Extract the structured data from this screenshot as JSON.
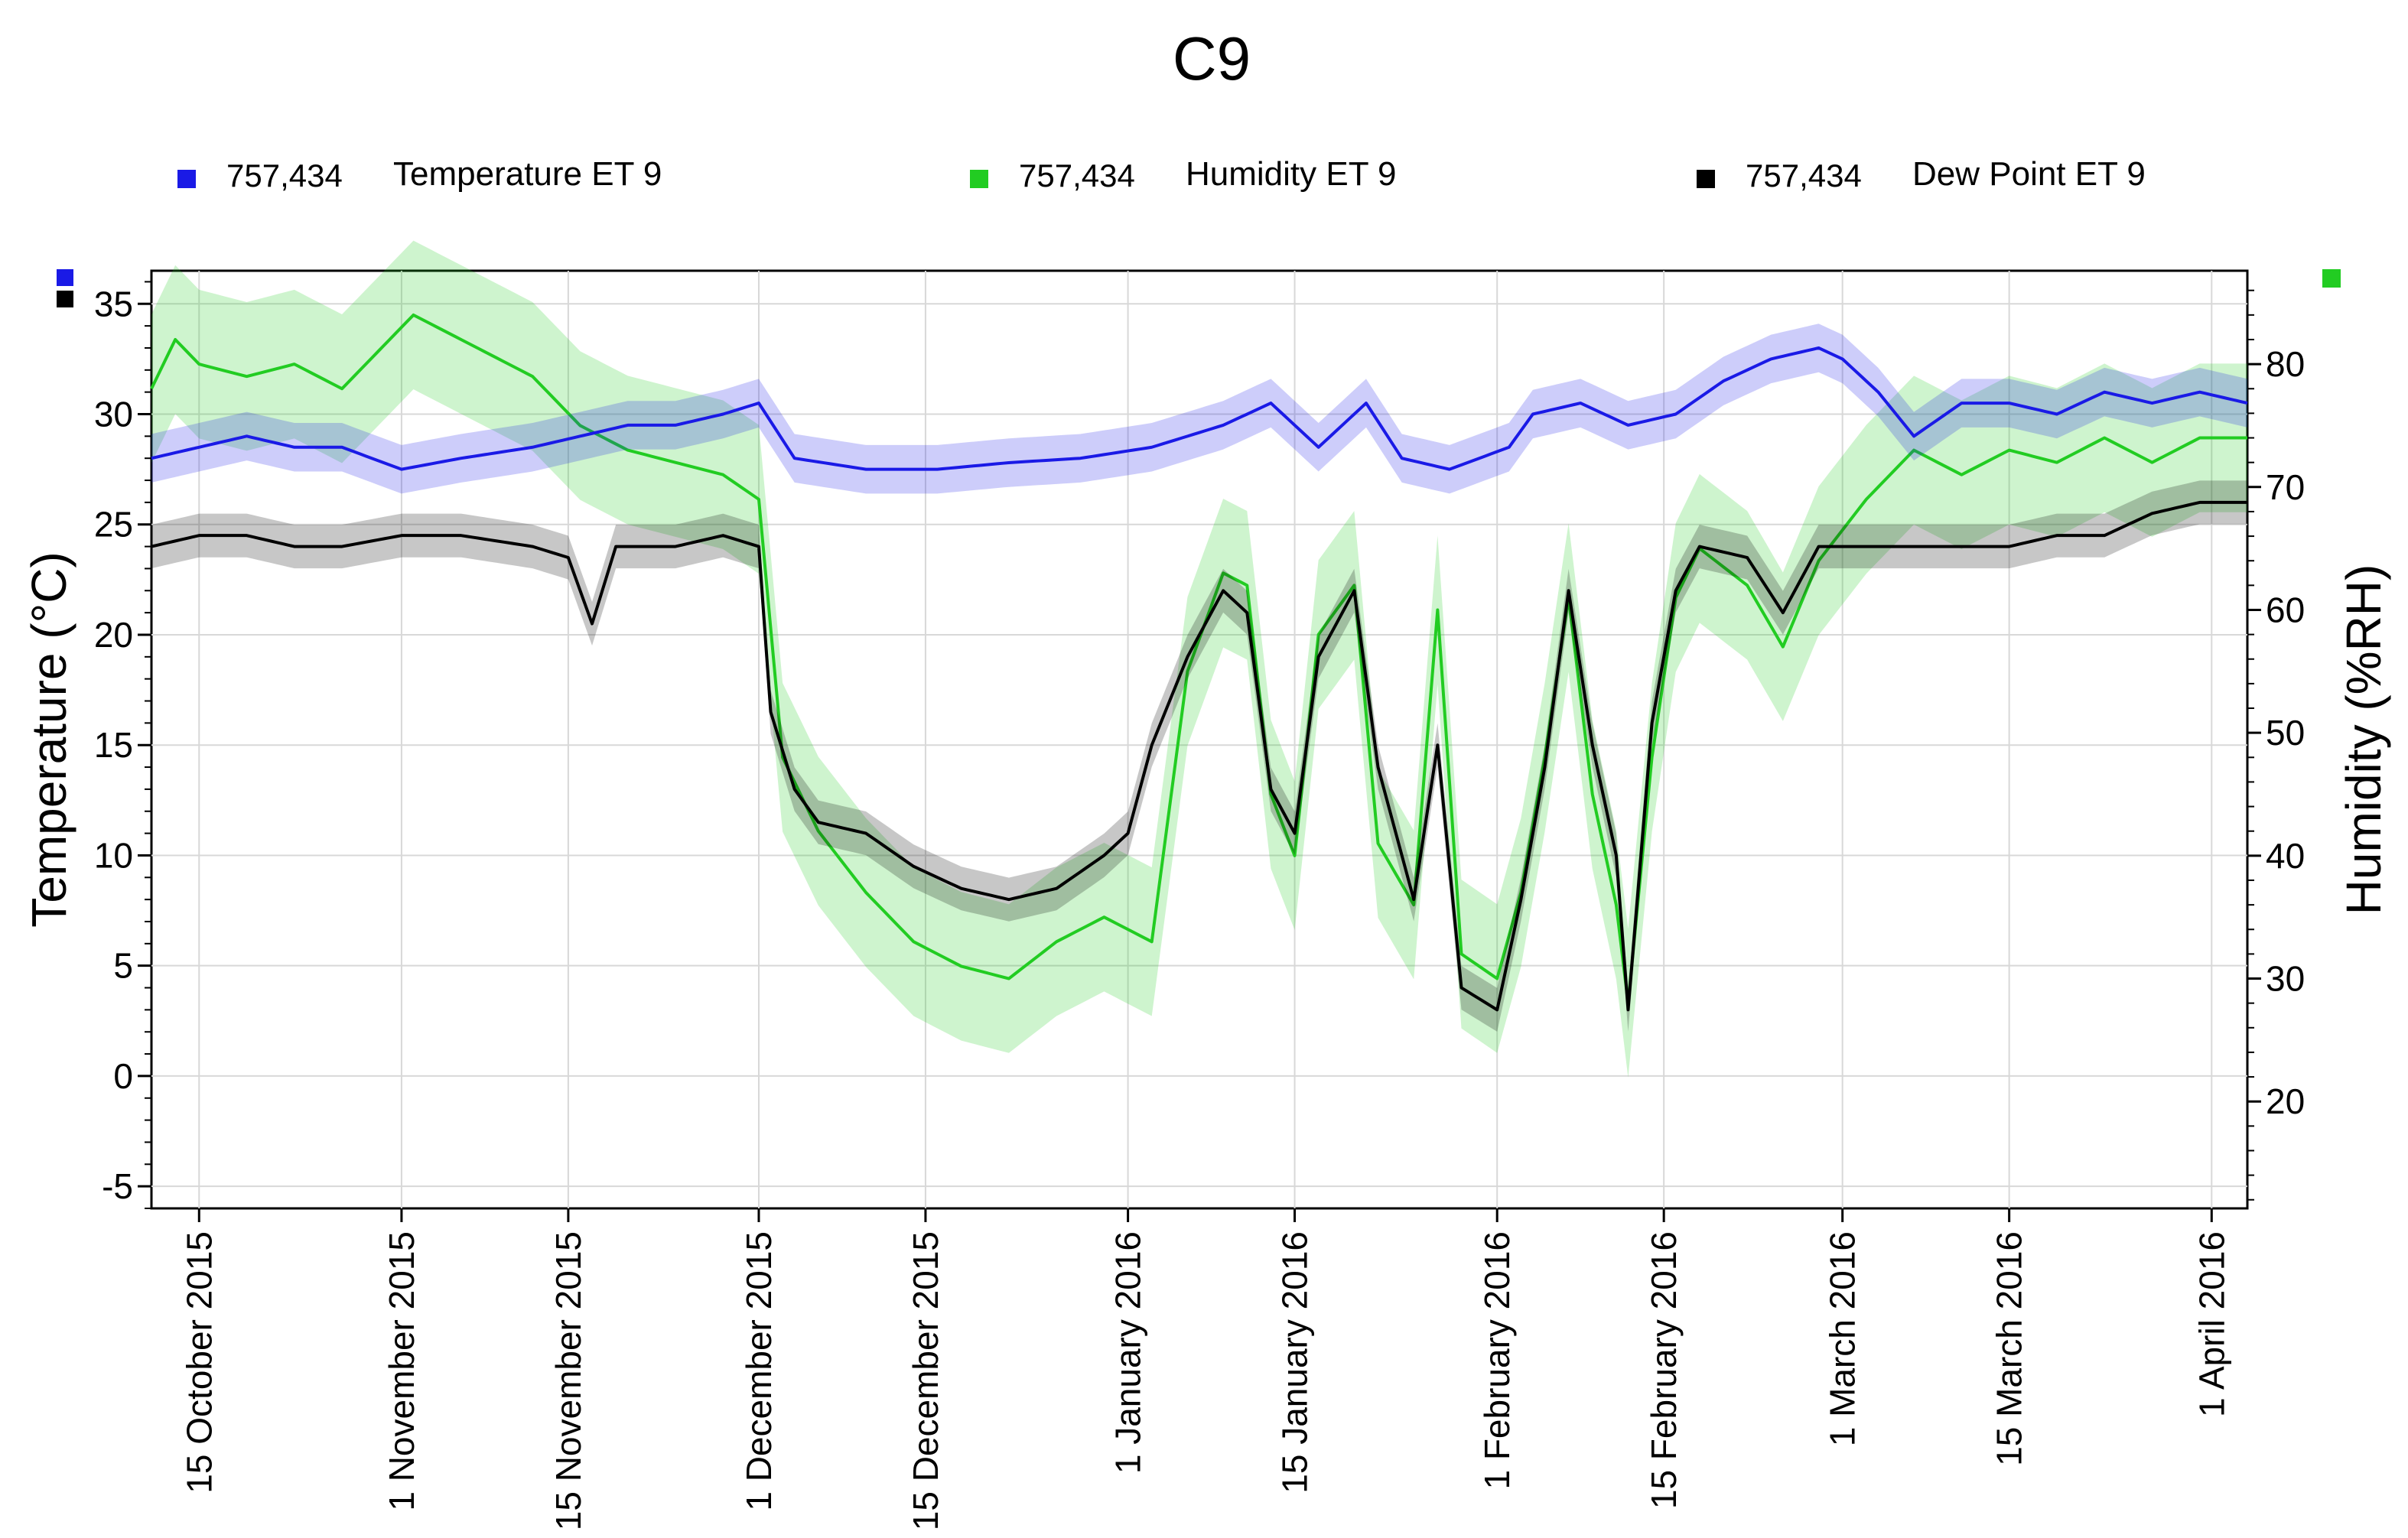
{
  "chart_data": {
    "type": "line",
    "title": "C9",
    "legend": [
      {
        "id": "temperature",
        "count": "757,434",
        "label": "Temperature ET 9",
        "color": "#1a1ae6",
        "axis": "left"
      },
      {
        "id": "humidity",
        "count": "757,434",
        "label": "Humidity ET 9",
        "color": "#22cc22",
        "axis": "right"
      },
      {
        "id": "dewpoint",
        "count": "757,434",
        "label": "Dew Point ET 9",
        "color": "#000000",
        "axis": "left"
      }
    ],
    "ylabel_left": "Temperature (°C)",
    "ylabel_right": "Humidity (%RH)",
    "yleft_range": [
      -6,
      36.5
    ],
    "yleft_ticks": [
      -5,
      0,
      5,
      10,
      15,
      20,
      25,
      30,
      35
    ],
    "yright_range": [
      11.3,
      87.6
    ],
    "yright_ticks": [
      20,
      30,
      40,
      50,
      60,
      70,
      80
    ],
    "x_range_days": [
      -4,
      172
    ],
    "x_ticks": [
      {
        "day": 0,
        "label": "15 October 2015"
      },
      {
        "day": 17,
        "label": "1 November 2015"
      },
      {
        "day": 31,
        "label": "15 November 2015"
      },
      {
        "day": 47,
        "label": "1 December 2015"
      },
      {
        "day": 61,
        "label": "15 December 2015"
      },
      {
        "day": 78,
        "label": "1 January 2016"
      },
      {
        "day": 92,
        "label": "15 January 2016"
      },
      {
        "day": 109,
        "label": "1 February 2016"
      },
      {
        "day": 123,
        "label": "15 February 2016"
      },
      {
        "day": 138,
        "label": "1 March 2016"
      },
      {
        "day": 152,
        "label": "15 March 2016"
      },
      {
        "day": 169,
        "label": "1 April 2016"
      }
    ],
    "series": [
      {
        "name": "Temperature ET 9",
        "axis": "left",
        "color": "#1a1ae6",
        "daily_swing": 1.0,
        "points": [
          [
            -4,
            28
          ],
          [
            0,
            28.5
          ],
          [
            4,
            29
          ],
          [
            8,
            28.5
          ],
          [
            12,
            28.5
          ],
          [
            17,
            27.5
          ],
          [
            22,
            28
          ],
          [
            28,
            28.5
          ],
          [
            32,
            29
          ],
          [
            36,
            29.5
          ],
          [
            40,
            29.5
          ],
          [
            44,
            30
          ],
          [
            47,
            30.5
          ],
          [
            50,
            28
          ],
          [
            56,
            27.5
          ],
          [
            62,
            27.5
          ],
          [
            68,
            27.8
          ],
          [
            74,
            28
          ],
          [
            80,
            28.5
          ],
          [
            86,
            29.5
          ],
          [
            90,
            30.5
          ],
          [
            94,
            28.5
          ],
          [
            98,
            30.5
          ],
          [
            101,
            28
          ],
          [
            105,
            27.5
          ],
          [
            110,
            28.5
          ],
          [
            112,
            30
          ],
          [
            116,
            30.5
          ],
          [
            120,
            29.5
          ],
          [
            124,
            30
          ],
          [
            128,
            31.5
          ],
          [
            132,
            32.5
          ],
          [
            136,
            33
          ],
          [
            138,
            32.5
          ],
          [
            141,
            31
          ],
          [
            144,
            29
          ],
          [
            148,
            30.5
          ],
          [
            152,
            30.5
          ],
          [
            156,
            30
          ],
          [
            160,
            31
          ],
          [
            164,
            30.5
          ],
          [
            168,
            31
          ],
          [
            172,
            30.5
          ]
        ]
      },
      {
        "name": "Humidity ET 9",
        "axis": "right",
        "color": "#22cc22",
        "daily_swing": 5.5,
        "points": [
          [
            -4,
            78
          ],
          [
            -2,
            82
          ],
          [
            0,
            80
          ],
          [
            4,
            79
          ],
          [
            8,
            80
          ],
          [
            12,
            78
          ],
          [
            15,
            81
          ],
          [
            18,
            84
          ],
          [
            22,
            82
          ],
          [
            28,
            79
          ],
          [
            32,
            75
          ],
          [
            36,
            73
          ],
          [
            40,
            72
          ],
          [
            44,
            71
          ],
          [
            47,
            69
          ],
          [
            49,
            48
          ],
          [
            52,
            42
          ],
          [
            56,
            37
          ],
          [
            60,
            33
          ],
          [
            64,
            31
          ],
          [
            68,
            30
          ],
          [
            72,
            33
          ],
          [
            76,
            35
          ],
          [
            80,
            33
          ],
          [
            83,
            55
          ],
          [
            86,
            63
          ],
          [
            88,
            62
          ],
          [
            90,
            45
          ],
          [
            92,
            40
          ],
          [
            94,
            58
          ],
          [
            97,
            62
          ],
          [
            99,
            41
          ],
          [
            102,
            36
          ],
          [
            104,
            60
          ],
          [
            106,
            32
          ],
          [
            109,
            30
          ],
          [
            111,
            37
          ],
          [
            113,
            48
          ],
          [
            115,
            61
          ],
          [
            117,
            45
          ],
          [
            119,
            36
          ],
          [
            120,
            28
          ],
          [
            122,
            48
          ],
          [
            124,
            61
          ],
          [
            126,
            65
          ],
          [
            130,
            62
          ],
          [
            133,
            57
          ],
          [
            136,
            64
          ],
          [
            140,
            69
          ],
          [
            144,
            73
          ],
          [
            148,
            71
          ],
          [
            152,
            73
          ],
          [
            156,
            72
          ],
          [
            160,
            74
          ],
          [
            164,
            72
          ],
          [
            168,
            74
          ],
          [
            172,
            74
          ]
        ]
      },
      {
        "name": "Dew Point ET 9",
        "axis": "left",
        "color": "#000000",
        "daily_swing": 0.9,
        "points": [
          [
            -4,
            24
          ],
          [
            0,
            24.5
          ],
          [
            4,
            24.5
          ],
          [
            8,
            24
          ],
          [
            12,
            24
          ],
          [
            17,
            24.5
          ],
          [
            22,
            24.5
          ],
          [
            28,
            24
          ],
          [
            31,
            23.5
          ],
          [
            33,
            20.5
          ],
          [
            35,
            24
          ],
          [
            40,
            24
          ],
          [
            44,
            24.5
          ],
          [
            47,
            24
          ],
          [
            48,
            16.5
          ],
          [
            50,
            13
          ],
          [
            52,
            11.5
          ],
          [
            56,
            11
          ],
          [
            60,
            9.5
          ],
          [
            64,
            8.5
          ],
          [
            68,
            8
          ],
          [
            72,
            8.5
          ],
          [
            76,
            10
          ],
          [
            78,
            11
          ],
          [
            80,
            15
          ],
          [
            83,
            19
          ],
          [
            86,
            22
          ],
          [
            88,
            21
          ],
          [
            90,
            13
          ],
          [
            92,
            11
          ],
          [
            94,
            19
          ],
          [
            97,
            22
          ],
          [
            99,
            14
          ],
          [
            102,
            8
          ],
          [
            104,
            15
          ],
          [
            106,
            4
          ],
          [
            109,
            3
          ],
          [
            111,
            8
          ],
          [
            113,
            14
          ],
          [
            115,
            22
          ],
          [
            117,
            15
          ],
          [
            119,
            10
          ],
          [
            120,
            3
          ],
          [
            122,
            16
          ],
          [
            124,
            22
          ],
          [
            126,
            24
          ],
          [
            130,
            23.5
          ],
          [
            133,
            21
          ],
          [
            136,
            24
          ],
          [
            140,
            24
          ],
          [
            144,
            24
          ],
          [
            148,
            24
          ],
          [
            152,
            24
          ],
          [
            156,
            24.5
          ],
          [
            160,
            24.5
          ],
          [
            164,
            25.5
          ],
          [
            168,
            26
          ],
          [
            172,
            26
          ]
        ]
      }
    ]
  }
}
